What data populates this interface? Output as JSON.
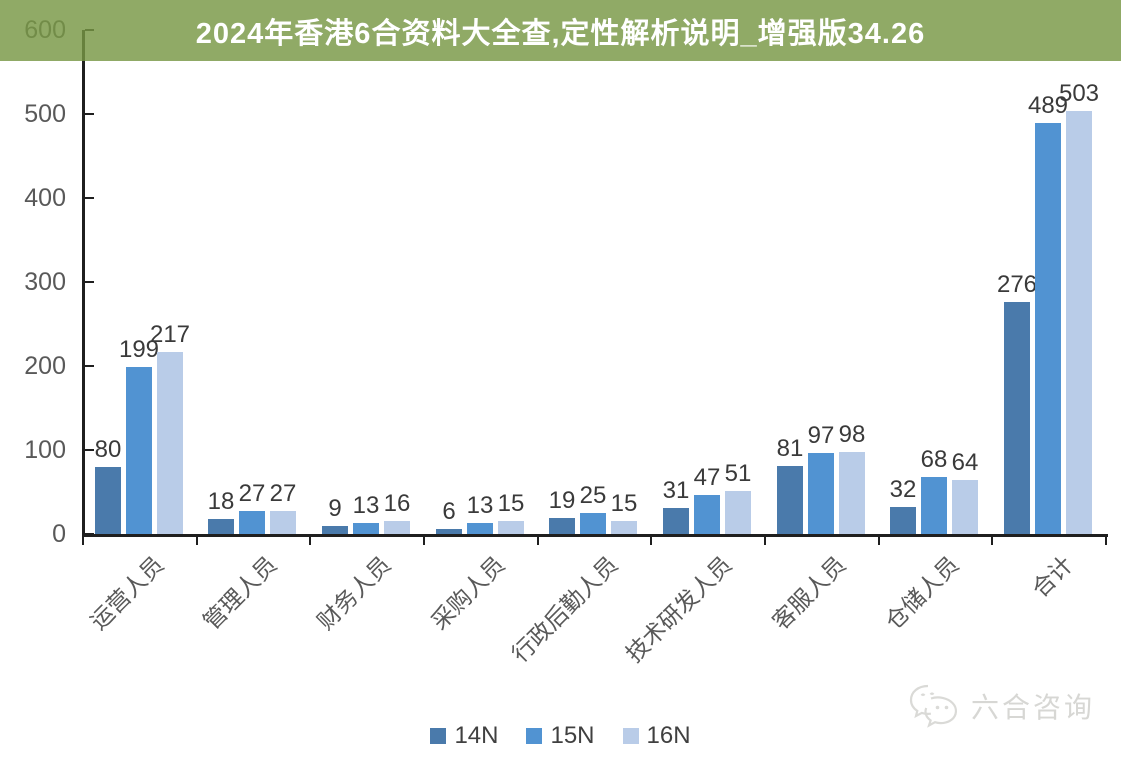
{
  "banner": {
    "text": "2024年香港6合资料大全查,定性解析说明_增强版34.26",
    "background_rgba": "rgba(120,151,68,0.82)",
    "text_color": "#ffffff"
  },
  "chart_data": {
    "type": "bar",
    "title": "",
    "xlabel": "",
    "ylabel": "",
    "categories": [
      "运营人员",
      "管理人员",
      "财务人员",
      "采购人员",
      "行政后勤人员",
      "技术研发人员",
      "客服人员",
      "仓储人员",
      "合计"
    ],
    "series": [
      {
        "name": "14N",
        "color": "#4a7aab",
        "values": [
          80,
          18,
          9,
          6,
          19,
          31,
          81,
          32,
          276
        ]
      },
      {
        "name": "15N",
        "color": "#5193d2",
        "values": [
          199,
          27,
          13,
          13,
          25,
          47,
          97,
          68,
          489
        ]
      },
      {
        "name": "16N",
        "color": "#b9cce8",
        "values": [
          217,
          27,
          16,
          15,
          15,
          51,
          98,
          64,
          503
        ]
      }
    ],
    "ylim": [
      0,
      600
    ],
    "yticks": [
      0,
      100,
      200,
      300,
      400,
      500,
      600
    ],
    "grid": false,
    "legend_position": "bottom",
    "value_labels_shown": true,
    "axis_color": "#1f1f1f",
    "tick_label_color": "#595959",
    "value_label_color": "#3a3a3a"
  },
  "watermark": {
    "text": "六合咨询",
    "icon": "wechat-chat-bubbles-icon",
    "color": "#d7d7d4"
  }
}
